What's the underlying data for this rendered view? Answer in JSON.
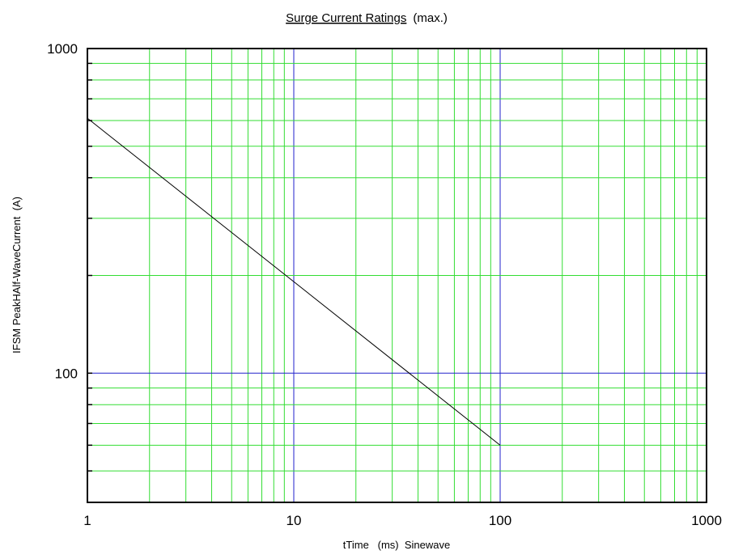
{
  "chart_data": {
    "type": "line",
    "title": "Surge Current Ratings",
    "subtitle": "(max.)",
    "xlabel": "tTime   (ms)  Sinewave",
    "ylabel": "IFSM PeakHAlf-WaveCurrent  (A)",
    "x_scale": "log",
    "y_scale": "log",
    "xlim": [
      1,
      1000
    ],
    "ylim": [
      40,
      1000
    ],
    "x_ticks": [
      {
        "value": 1,
        "label": "1"
      },
      {
        "value": 10,
        "label": "10"
      },
      {
        "value": 100,
        "label": "100"
      },
      {
        "value": 1000,
        "label": "1000"
      }
    ],
    "y_ticks": [
      {
        "value": 100,
        "label": "100"
      },
      {
        "value": 1000,
        "label": "1000"
      }
    ],
    "grid": true,
    "colors": {
      "minor_grid": "#33dd33",
      "major_grid": "#2222cc",
      "series": "#000000",
      "frame": "#000000"
    },
    "series": [
      {
        "x": [
          1,
          100
        ],
        "y": [
          610,
          60
        ]
      }
    ]
  }
}
